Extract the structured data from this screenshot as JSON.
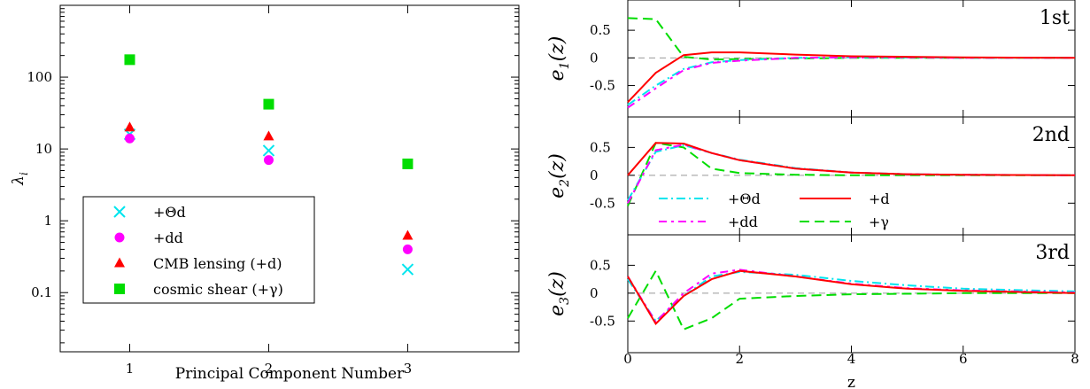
{
  "chart_data": [
    {
      "id": "eigenvalues",
      "type": "scatter",
      "xlabel": "Principal Component Number",
      "ylabel": "λ",
      "ylabel_sub": "i",
      "yscale": "log",
      "xlim": [
        0.5,
        3.8
      ],
      "ylim": [
        0.015,
        1000
      ],
      "xticks": [
        1,
        2,
        3
      ],
      "xtick_labels": [
        "1",
        "2",
        "3"
      ],
      "yticks": [
        0.1,
        1,
        10,
        100
      ],
      "ytick_labels": [
        "0.1",
        "1",
        "10",
        "100"
      ],
      "legend_position": "lower-left",
      "series": [
        {
          "name": "+Θd",
          "marker": "x",
          "color": "#00e5ee",
          "x": [
            1,
            2,
            3
          ],
          "values": [
            16,
            9.5,
            0.21
          ]
        },
        {
          "name": "+dd",
          "marker": "circle",
          "color": "#ff00ff",
          "x": [
            1,
            2,
            3
          ],
          "values": [
            14,
            7,
            0.4
          ]
        },
        {
          "name": "CMB lensing (+d)",
          "marker": "triangle",
          "color": "#ff0000",
          "x": [
            1,
            2,
            3
          ],
          "values": [
            20,
            15,
            0.62
          ]
        },
        {
          "name": "cosmic shear (+γ)",
          "marker": "square",
          "color": "#00dd00",
          "x": [
            1,
            2,
            3
          ],
          "values": [
            175,
            42,
            6.2
          ]
        }
      ]
    },
    {
      "id": "eigenfunctions",
      "type": "line",
      "xlabel": "z",
      "xlim": [
        0,
        8
      ],
      "ylim": [
        -1,
        1
      ],
      "xticks": [
        0,
        2,
        4,
        6,
        8
      ],
      "xtick_labels": [
        "0",
        "2",
        "4",
        "6",
        "8"
      ],
      "yticks": [
        -0.5,
        0,
        0.5
      ],
      "ytick_labels": [
        "-0.5",
        "0",
        "0.5"
      ],
      "legend": [
        {
          "name": "+Θd",
          "color": "#00e5ee",
          "dash": "dashdot"
        },
        {
          "name": "+dd",
          "color": "#ff00ff",
          "dash": "dashdot2"
        },
        {
          "name": "+d",
          "color": "#ff0000",
          "dash": "solid"
        },
        {
          "name": "+γ",
          "color": "#00dd00",
          "dash": "dash"
        }
      ],
      "panels": [
        {
          "tag": "1st",
          "ylabel_main": "e",
          "ylabel_sub": "1",
          "ylabel_tail": "(z)",
          "series": [
            {
              "name": "+Θd",
              "x": [
                0,
                0.5,
                1,
                1.5,
                2,
                3,
                4,
                5,
                6,
                8
              ],
              "values": [
                -0.85,
                -0.5,
                -0.2,
                -0.08,
                -0.04,
                0,
                0.01,
                0.01,
                0,
                0
              ]
            },
            {
              "name": "+dd",
              "x": [
                0,
                0.5,
                1,
                1.5,
                2,
                3,
                4,
                5,
                6,
                8
              ],
              "values": [
                -0.9,
                -0.55,
                -0.22,
                -0.09,
                -0.05,
                0,
                0.01,
                0.01,
                0,
                0
              ]
            },
            {
              "name": "+d",
              "x": [
                0,
                0.5,
                1,
                1.5,
                2,
                3,
                4,
                5,
                6,
                8
              ],
              "values": [
                -0.8,
                -0.27,
                0.05,
                0.1,
                0.1,
                0.06,
                0.03,
                0.02,
                0.01,
                0
              ]
            },
            {
              "name": "+γ",
              "x": [
                0,
                0.5,
                1,
                1.5,
                2,
                3,
                4,
                5,
                6,
                8
              ],
              "values": [
                0.72,
                0.7,
                0.02,
                -0.03,
                -0.02,
                -0.01,
                0,
                0,
                0,
                0
              ]
            }
          ]
        },
        {
          "tag": "2nd",
          "ylabel_main": "e",
          "ylabel_sub": "2",
          "ylabel_tail": "(z)",
          "series": [
            {
              "name": "+Θd",
              "x": [
                0,
                0.5,
                1,
                1.5,
                2,
                3,
                4,
                5,
                6,
                8
              ],
              "values": [
                -0.45,
                0.42,
                0.54,
                0.4,
                0.28,
                0.13,
                0.05,
                0.02,
                0.01,
                0
              ]
            },
            {
              "name": "+dd",
              "x": [
                0,
                0.5,
                1,
                1.5,
                2,
                3,
                4,
                5,
                6,
                8
              ],
              "values": [
                -0.5,
                0.45,
                0.55,
                0.4,
                0.27,
                0.12,
                0.05,
                0.02,
                0.01,
                0
              ]
            },
            {
              "name": "+d",
              "x": [
                0,
                0.5,
                1,
                1.5,
                2,
                3,
                4,
                5,
                6,
                8
              ],
              "values": [
                0,
                0.58,
                0.57,
                0.4,
                0.27,
                0.12,
                0.05,
                0.02,
                0.01,
                0
              ]
            },
            {
              "name": "+γ",
              "x": [
                0,
                0.5,
                1,
                1.5,
                2,
                3,
                4,
                5,
                6,
                8
              ],
              "values": [
                -0.55,
                0.58,
                0.5,
                0.12,
                0.04,
                0.01,
                0,
                0,
                0,
                0
              ]
            }
          ]
        },
        {
          "tag": "3rd",
          "ylabel_main": "e",
          "ylabel_sub": "3",
          "ylabel_tail": "(z)",
          "series": [
            {
              "name": "+Θd",
              "x": [
                0,
                0.5,
                1,
                1.5,
                2,
                3,
                4,
                5,
                6,
                8
              ],
              "values": [
                0.25,
                -0.5,
                -0.05,
                0.3,
                0.38,
                0.33,
                0.22,
                0.14,
                0.08,
                0.03
              ]
            },
            {
              "name": "+dd",
              "x": [
                0,
                0.5,
                1,
                1.5,
                2,
                3,
                4,
                5,
                6,
                8
              ],
              "values": [
                0.3,
                -0.52,
                0,
                0.35,
                0.42,
                0.3,
                0.17,
                0.09,
                0.05,
                0.01
              ]
            },
            {
              "name": "+d",
              "x": [
                0,
                0.5,
                1,
                1.5,
                2,
                3,
                4,
                5,
                6,
                8
              ],
              "values": [
                0.3,
                -0.55,
                -0.05,
                0.25,
                0.4,
                0.3,
                0.16,
                0.08,
                0.04,
                0
              ]
            },
            {
              "name": "+γ",
              "x": [
                0,
                0.5,
                1,
                1.5,
                2,
                3,
                4,
                5,
                6,
                8
              ],
              "values": [
                -0.45,
                0.4,
                -0.65,
                -0.45,
                -0.1,
                -0.05,
                -0.02,
                -0.01,
                0,
                0
              ]
            }
          ]
        }
      ]
    }
  ]
}
